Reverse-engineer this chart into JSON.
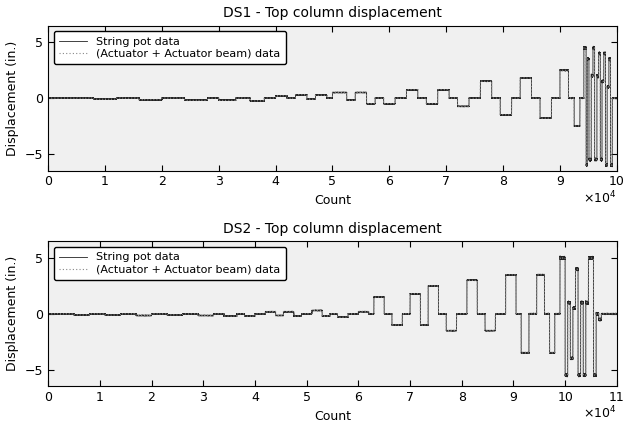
{
  "title1": "DS1 - Top column displacement",
  "title2": "DS2 - Top column displacement",
  "xlabel": "Count",
  "ylabel": "Displacement (in.)",
  "ylim": [
    -6.5,
    6.5
  ],
  "yticks": [
    -5,
    0,
    5
  ],
  "legend1": [
    "String pot data",
    "(Actuator + Actuator beam) data"
  ],
  "ds1_xlim": [
    0,
    100000
  ],
  "ds1_xticks": [
    0,
    10000,
    20000,
    30000,
    40000,
    50000,
    60000,
    70000,
    80000,
    90000,
    100000
  ],
  "ds1_xticklabels": [
    "0",
    "1",
    "2",
    "3",
    "4",
    "5",
    "6",
    "7",
    "8",
    "9",
    "10"
  ],
  "ds2_xlim": [
    0,
    110000
  ],
  "ds2_xticks": [
    0,
    10000,
    20000,
    30000,
    40000,
    50000,
    60000,
    70000,
    80000,
    90000,
    100000,
    110000
  ],
  "ds2_xticklabels": [
    "0",
    "1",
    "2",
    "3",
    "4",
    "5",
    "6",
    "7",
    "8",
    "9",
    "10",
    "11"
  ],
  "line_color": "#000000",
  "dot_color": "#888888",
  "bg_color": "#ffffff",
  "fontsize": 9,
  "title_fontsize": 10,
  "legend_fontsize": 8
}
